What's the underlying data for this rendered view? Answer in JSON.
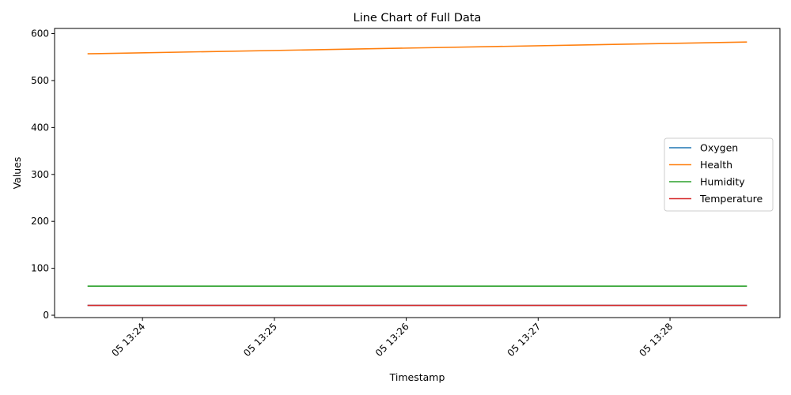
{
  "chart_data": {
    "type": "line",
    "title": "Line Chart of Full Data",
    "xlabel": "Timestamp",
    "ylabel": "Values",
    "x_ticks": [
      "05 13:24",
      "05 13:25",
      "05 13:26",
      "05 13:27",
      "05 13:28"
    ],
    "x": [
      "13:23:35",
      "13:28:35"
    ],
    "xlim": [
      "13:23:20",
      "13:28:50"
    ],
    "ylim": [
      -5,
      611
    ],
    "y_ticks": [
      0,
      100,
      200,
      300,
      400,
      500,
      600
    ],
    "legend_position": "center-right",
    "series": [
      {
        "name": "Oxygen",
        "color": "#1f77b4",
        "values": [
          21,
          21
        ]
      },
      {
        "name": "Health",
        "color": "#ff7f0e",
        "values": [
          557,
          582
        ]
      },
      {
        "name": "Humidity",
        "color": "#2ca02c",
        "values": [
          62,
          62
        ]
      },
      {
        "name": "Temperature",
        "color": "#d62728",
        "values": [
          21,
          21
        ]
      }
    ]
  }
}
